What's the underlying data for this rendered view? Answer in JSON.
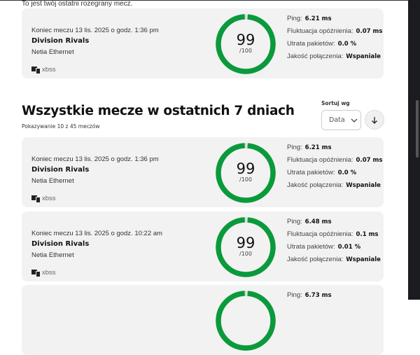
{
  "intro": "To jest twój ostatni rozegrany mecz.",
  "labels": {
    "ping": "Ping:",
    "jitter": "Fluktuacja opóźnienia:",
    "loss": "Utrata pakietów:",
    "quality": "Jakość połączenia:",
    "outof": "/100"
  },
  "section": {
    "title": "Wszystkie mecze w ostatnich 7 dniach",
    "count": "Pokazywanie 10 z 45 meczów",
    "sort_label": "Sortuj wg",
    "sort_value": "Data",
    "sort_direction_icon": "arrow-down-icon"
  },
  "colors": {
    "gauge": "#0a9a3c",
    "gauge_track": "#dcdcdc"
  },
  "matches": [
    {
      "meta": "Koniec meczu 13 lis. 2025 o godz. 1:36 pm",
      "game": "Division Rivals",
      "network": "Netia Ethernet",
      "device": "xbss",
      "score": "99",
      "score_value": 99,
      "ping": "6.21 ms",
      "jitter": "0.07 ms",
      "loss": "0.0 %",
      "quality": "Wspaniale"
    },
    {
      "meta": "Koniec meczu 13 lis. 2025 o godz. 1:36 pm",
      "game": "Division Rivals",
      "network": "Netia Ethernet",
      "device": "xbss",
      "score": "99",
      "score_value": 99,
      "ping": "6.21 ms",
      "jitter": "0.07 ms",
      "loss": "0.0 %",
      "quality": "Wspaniale"
    },
    {
      "meta": "Koniec meczu 13 lis. 2025 o godz. 10:22 am",
      "game": "Division Rivals",
      "network": "Netia Ethernet",
      "device": "xbss",
      "score": "99",
      "score_value": 99,
      "ping": "6.48 ms",
      "jitter": "0.1 ms",
      "loss": "0.01 %",
      "quality": "Wspaniale"
    },
    {
      "ping": "6.73 ms"
    }
  ]
}
